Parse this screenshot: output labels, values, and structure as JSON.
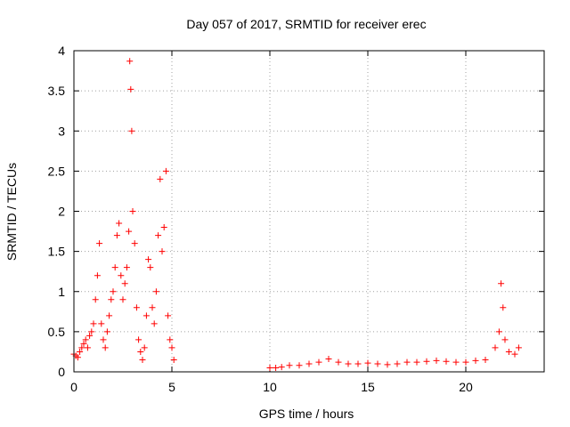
{
  "chart_data": {
    "type": "scatter",
    "title": "Day 057 of 2017, SRMTID for receiver erec",
    "xlabel": "GPS time / hours",
    "ylabel": "SRMTID / TECUs",
    "xlim": [
      0,
      24
    ],
    "ylim": [
      0,
      4
    ],
    "x_ticks": [
      0,
      5,
      10,
      15,
      20
    ],
    "x_tick_labels": [
      "0",
      "5",
      "10",
      "15",
      "20"
    ],
    "y_ticks": [
      0,
      0.5,
      1,
      1.5,
      2,
      2.5,
      3,
      3.5,
      4
    ],
    "y_tick_labels": [
      "0",
      "0.5",
      "1",
      "1.5",
      "2",
      "2.5",
      "3",
      "3.5",
      "4"
    ],
    "grid": true,
    "marker": "+",
    "marker_color": "#ff0000",
    "series": [
      {
        "name": "SRMTID",
        "x": [
          0.0,
          0.1,
          0.2,
          0.3,
          0.4,
          0.5,
          0.6,
          0.7,
          0.8,
          0.9,
          1.0,
          1.1,
          1.2,
          1.3,
          1.4,
          1.5,
          1.6,
          1.7,
          1.8,
          1.9,
          2.0,
          2.1,
          2.2,
          2.3,
          2.4,
          2.5,
          2.6,
          2.7,
          2.8,
          2.85,
          2.9,
          2.95,
          3.0,
          3.1,
          3.2,
          3.3,
          3.4,
          3.5,
          3.6,
          3.7,
          3.8,
          3.9,
          4.0,
          4.1,
          4.2,
          4.3,
          4.4,
          4.5,
          4.6,
          4.7,
          4.8,
          4.9,
          5.0,
          5.1,
          10.0,
          10.3,
          10.6,
          11.0,
          11.5,
          12.0,
          12.5,
          13.0,
          13.5,
          14.0,
          14.5,
          15.0,
          15.5,
          16.0,
          16.5,
          17.0,
          17.5,
          18.0,
          18.5,
          19.0,
          19.5,
          20.0,
          20.5,
          21.0,
          21.5,
          21.7,
          21.8,
          21.9,
          22.0,
          22.2,
          22.5,
          22.7
        ],
        "y": [
          0.22,
          0.2,
          0.18,
          0.25,
          0.3,
          0.35,
          0.4,
          0.3,
          0.45,
          0.5,
          0.6,
          0.9,
          1.2,
          1.6,
          0.6,
          0.4,
          0.3,
          0.5,
          0.7,
          0.9,
          1.0,
          1.3,
          1.7,
          1.85,
          1.2,
          0.9,
          1.1,
          1.3,
          1.75,
          3.87,
          3.52,
          3.0,
          2.0,
          1.6,
          0.8,
          0.4,
          0.25,
          0.15,
          0.3,
          0.7,
          1.4,
          1.3,
          0.8,
          0.6,
          1.0,
          1.7,
          2.4,
          1.5,
          1.8,
          2.5,
          0.7,
          0.4,
          0.3,
          0.15,
          0.05,
          0.05,
          0.06,
          0.08,
          0.08,
          0.1,
          0.12,
          0.16,
          0.12,
          0.1,
          0.1,
          0.11,
          0.1,
          0.09,
          0.1,
          0.12,
          0.12,
          0.13,
          0.14,
          0.13,
          0.12,
          0.12,
          0.14,
          0.15,
          0.3,
          0.5,
          1.1,
          0.8,
          0.4,
          0.25,
          0.22,
          0.3
        ]
      }
    ]
  }
}
